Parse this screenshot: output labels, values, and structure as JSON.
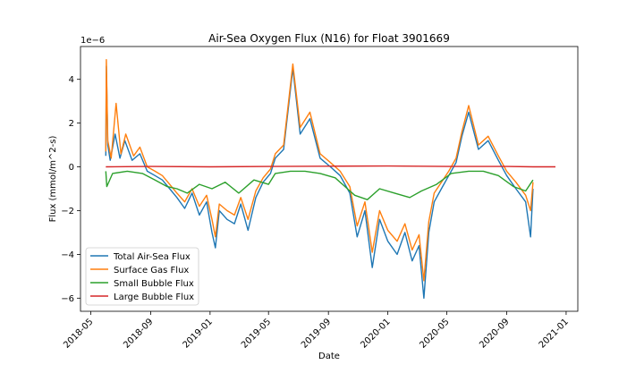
{
  "chart_data": {
    "type": "line",
    "title": "Air-Sea Oxygen Flux (N16) for Float 3901669",
    "xlabel": "Date",
    "ylabel": "Flux (mmol/m^2-s)",
    "y_offset_label": "1e−6",
    "xlim": [
      "2018-04-10",
      "2021-01-25"
    ],
    "ylim": [
      -6.6,
      5.5
    ],
    "xticks": [
      {
        "date": "2018-05-01",
        "label": "2018-05"
      },
      {
        "date": "2018-09-01",
        "label": "2018-09"
      },
      {
        "date": "2019-01-01",
        "label": "2019-01"
      },
      {
        "date": "2019-05-01",
        "label": "2019-05"
      },
      {
        "date": "2019-09-01",
        "label": "2019-09"
      },
      {
        "date": "2020-01-01",
        "label": "2020-01"
      },
      {
        "date": "2020-05-01",
        "label": "2020-05"
      },
      {
        "date": "2020-09-01",
        "label": "2020-09"
      },
      {
        "date": "2021-01-01",
        "label": "2021-01"
      }
    ],
    "yticks": [
      {
        "value": -6,
        "label": "−6"
      },
      {
        "value": -4,
        "label": "−4"
      },
      {
        "value": -2,
        "label": "−2"
      },
      {
        "value": 0,
        "label": "0"
      },
      {
        "value": 2,
        "label": "2"
      },
      {
        "value": 4,
        "label": "4"
      }
    ],
    "grid": false,
    "legend": "lower-left",
    "units_scale": "1e-6",
    "series": [
      {
        "name": "Total Air-Sea Flux",
        "color": "#1f77b4",
        "points": [
          [
            "2018-06-01",
            0.5
          ],
          [
            "2018-06-02",
            4.6
          ],
          [
            "2018-06-05",
            1.0
          ],
          [
            "2018-06-10",
            0.3
          ],
          [
            "2018-06-20",
            1.5
          ],
          [
            "2018-06-30",
            0.4
          ],
          [
            "2018-07-10",
            1.2
          ],
          [
            "2018-07-25",
            0.3
          ],
          [
            "2018-08-10",
            0.6
          ],
          [
            "2018-08-25",
            -0.2
          ],
          [
            "2018-09-10",
            -0.4
          ],
          [
            "2018-09-25",
            -0.6
          ],
          [
            "2018-10-10",
            -1.0
          ],
          [
            "2018-10-25",
            -1.4
          ],
          [
            "2018-11-10",
            -1.9
          ],
          [
            "2018-11-25",
            -1.2
          ],
          [
            "2018-12-10",
            -2.2
          ],
          [
            "2018-12-25",
            -1.6
          ],
          [
            "2019-01-05",
            -3.0
          ],
          [
            "2019-01-12",
            -3.7
          ],
          [
            "2019-01-20",
            -2.0
          ],
          [
            "2019-02-05",
            -2.4
          ],
          [
            "2019-02-20",
            -2.6
          ],
          [
            "2019-03-05",
            -1.7
          ],
          [
            "2019-03-20",
            -2.9
          ],
          [
            "2019-04-05",
            -1.4
          ],
          [
            "2019-04-20",
            -0.7
          ],
          [
            "2019-05-05",
            -0.3
          ],
          [
            "2019-05-15",
            0.4
          ],
          [
            "2019-06-01",
            0.8
          ],
          [
            "2019-06-20",
            4.5
          ],
          [
            "2019-07-05",
            1.5
          ],
          [
            "2019-07-25",
            2.2
          ],
          [
            "2019-08-15",
            0.4
          ],
          [
            "2019-09-05",
            0.0
          ],
          [
            "2019-09-25",
            -0.4
          ],
          [
            "2019-10-15",
            -1.2
          ],
          [
            "2019-10-30",
            -3.2
          ],
          [
            "2019-11-15",
            -2.0
          ],
          [
            "2019-11-30",
            -4.6
          ],
          [
            "2019-12-15",
            -2.4
          ],
          [
            "2020-01-01",
            -3.4
          ],
          [
            "2020-01-20",
            -4.0
          ],
          [
            "2020-02-05",
            -3.0
          ],
          [
            "2020-02-20",
            -4.3
          ],
          [
            "2020-03-05",
            -3.6
          ],
          [
            "2020-03-15",
            -6.0
          ],
          [
            "2020-03-25",
            -3.0
          ],
          [
            "2020-04-05",
            -1.6
          ],
          [
            "2020-04-20",
            -1.0
          ],
          [
            "2020-05-05",
            -0.4
          ],
          [
            "2020-05-20",
            0.2
          ],
          [
            "2020-06-01",
            1.4
          ],
          [
            "2020-06-15",
            2.5
          ],
          [
            "2020-07-05",
            0.8
          ],
          [
            "2020-07-25",
            1.2
          ],
          [
            "2020-08-15",
            0.3
          ],
          [
            "2020-09-01",
            -0.4
          ],
          [
            "2020-09-20",
            -1.0
          ],
          [
            "2020-10-10",
            -1.6
          ],
          [
            "2020-10-20",
            -3.2
          ],
          [
            "2020-10-25",
            -1.0
          ]
        ]
      },
      {
        "name": "Surface Gas Flux",
        "color": "#ff7f0e",
        "points": [
          [
            "2018-06-01",
            0.7
          ],
          [
            "2018-06-02",
            4.9
          ],
          [
            "2018-06-05",
            1.2
          ],
          [
            "2018-06-12",
            0.4
          ],
          [
            "2018-06-22",
            2.9
          ],
          [
            "2018-07-02",
            0.6
          ],
          [
            "2018-07-12",
            1.5
          ],
          [
            "2018-07-28",
            0.5
          ],
          [
            "2018-08-10",
            0.9
          ],
          [
            "2018-08-25",
            0.0
          ],
          [
            "2018-09-10",
            -0.2
          ],
          [
            "2018-09-25",
            -0.4
          ],
          [
            "2018-10-10",
            -0.8
          ],
          [
            "2018-10-25",
            -1.2
          ],
          [
            "2018-11-10",
            -1.6
          ],
          [
            "2018-11-25",
            -1.0
          ],
          [
            "2018-12-10",
            -1.8
          ],
          [
            "2018-12-25",
            -1.3
          ],
          [
            "2019-01-05",
            -2.4
          ],
          [
            "2019-01-12",
            -3.2
          ],
          [
            "2019-01-20",
            -1.7
          ],
          [
            "2019-02-05",
            -2.0
          ],
          [
            "2019-02-20",
            -2.2
          ],
          [
            "2019-03-05",
            -1.4
          ],
          [
            "2019-03-20",
            -2.4
          ],
          [
            "2019-04-05",
            -1.1
          ],
          [
            "2019-04-20",
            -0.5
          ],
          [
            "2019-05-05",
            -0.1
          ],
          [
            "2019-05-15",
            0.6
          ],
          [
            "2019-06-01",
            1.0
          ],
          [
            "2019-06-20",
            4.7
          ],
          [
            "2019-07-05",
            1.8
          ],
          [
            "2019-07-25",
            2.5
          ],
          [
            "2019-08-15",
            0.6
          ],
          [
            "2019-09-05",
            0.2
          ],
          [
            "2019-09-25",
            -0.2
          ],
          [
            "2019-10-15",
            -0.9
          ],
          [
            "2019-10-30",
            -2.7
          ],
          [
            "2019-11-15",
            -1.6
          ],
          [
            "2019-11-30",
            -3.9
          ],
          [
            "2019-12-15",
            -2.0
          ],
          [
            "2020-01-01",
            -2.9
          ],
          [
            "2020-01-20",
            -3.4
          ],
          [
            "2020-02-05",
            -2.6
          ],
          [
            "2020-02-20",
            -3.8
          ],
          [
            "2020-03-05",
            -3.1
          ],
          [
            "2020-03-15",
            -5.2
          ],
          [
            "2020-03-25",
            -2.5
          ],
          [
            "2020-04-05",
            -1.2
          ],
          [
            "2020-04-20",
            -0.7
          ],
          [
            "2020-05-05",
            -0.2
          ],
          [
            "2020-05-20",
            0.4
          ],
          [
            "2020-06-01",
            1.6
          ],
          [
            "2020-06-15",
            2.8
          ],
          [
            "2020-07-05",
            1.0
          ],
          [
            "2020-07-25",
            1.4
          ],
          [
            "2020-08-15",
            0.5
          ],
          [
            "2020-09-01",
            -0.2
          ],
          [
            "2020-09-20",
            -0.7
          ],
          [
            "2020-10-10",
            -1.3
          ],
          [
            "2020-10-20",
            -2.0
          ],
          [
            "2020-10-25",
            -0.7
          ]
        ]
      },
      {
        "name": "Small Bubble Flux",
        "color": "#2ca02c",
        "points": [
          [
            "2018-06-01",
            -0.2
          ],
          [
            "2018-06-03",
            -0.9
          ],
          [
            "2018-06-15",
            -0.3
          ],
          [
            "2018-07-15",
            -0.2
          ],
          [
            "2018-08-15",
            -0.3
          ],
          [
            "2018-09-10",
            -0.6
          ],
          [
            "2018-10-05",
            -0.9
          ],
          [
            "2018-10-25",
            -1.0
          ],
          [
            "2018-11-15",
            -1.2
          ],
          [
            "2018-12-10",
            -0.8
          ],
          [
            "2019-01-05",
            -1.0
          ],
          [
            "2019-02-01",
            -0.7
          ],
          [
            "2019-03-01",
            -1.2
          ],
          [
            "2019-04-01",
            -0.6
          ],
          [
            "2019-05-01",
            -0.8
          ],
          [
            "2019-05-15",
            -0.3
          ],
          [
            "2019-06-15",
            -0.2
          ],
          [
            "2019-07-15",
            -0.2
          ],
          [
            "2019-08-15",
            -0.3
          ],
          [
            "2019-09-15",
            -0.5
          ],
          [
            "2019-10-10",
            -1.0
          ],
          [
            "2019-10-25",
            -1.3
          ],
          [
            "2019-11-20",
            -1.5
          ],
          [
            "2019-12-15",
            -1.0
          ],
          [
            "2020-01-15",
            -1.2
          ],
          [
            "2020-02-15",
            -1.4
          ],
          [
            "2020-03-10",
            -1.1
          ],
          [
            "2020-04-10",
            -0.8
          ],
          [
            "2020-05-10",
            -0.3
          ],
          [
            "2020-06-15",
            -0.2
          ],
          [
            "2020-07-15",
            -0.2
          ],
          [
            "2020-08-15",
            -0.4
          ],
          [
            "2020-09-15",
            -0.9
          ],
          [
            "2020-10-10",
            -1.1
          ],
          [
            "2020-10-25",
            -0.6
          ]
        ]
      },
      {
        "name": "Large Bubble Flux",
        "color": "#d62728",
        "points": [
          [
            "2018-06-01",
            0.0
          ],
          [
            "2018-09-01",
            0.02
          ],
          [
            "2019-01-01",
            0.0
          ],
          [
            "2019-05-05",
            0.02
          ],
          [
            "2019-09-01",
            0.03
          ],
          [
            "2020-01-01",
            0.04
          ],
          [
            "2020-05-01",
            0.02
          ],
          [
            "2020-09-01",
            0.02
          ],
          [
            "2020-10-25",
            0.0
          ],
          [
            "2020-12-10",
            0.0
          ]
        ]
      }
    ]
  }
}
